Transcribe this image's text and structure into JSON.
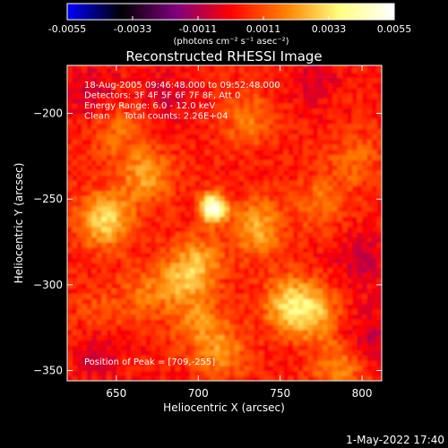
{
  "colorbar": {
    "tick_labels": [
      "-0.0055",
      "-0.0033",
      "-0.0011",
      "0.0011",
      "0.0033",
      "0.0055"
    ],
    "tick_values": [
      -0.0055,
      -0.0033,
      -0.0011,
      0.0011,
      0.0033,
      0.0055
    ],
    "range": [
      -0.0055,
      0.0055
    ],
    "unit_label": "(photons cm⁻² s⁻¹ asec⁻²)",
    "stops": [
      "#0000ff",
      "#000000",
      "#7f0080",
      "#ff0000",
      "#ff8000",
      "#ffff80",
      "#ffffff"
    ]
  },
  "chart_data": {
    "type": "heatmap",
    "title": "Reconstructed RHESSI Image",
    "xlabel": "Heliocentric X (arcsec)",
    "ylabel": "Heliocentric Y (arcsec)",
    "xlim": [
      620,
      812
    ],
    "ylim": [
      -356,
      -172
    ],
    "x_ticks": [
      650,
      700,
      750,
      800
    ],
    "y_ticks": [
      -200,
      -250,
      -300,
      -350
    ],
    "x_tick_labels": [
      "650",
      "700",
      "750",
      "800"
    ],
    "y_tick_labels": [
      "−200",
      "−250",
      "−300",
      "−350"
    ],
    "annotations": [
      "18-Aug-2005 09:46:48.000 to 09:52:48.000",
      "Detectors: 3F 4F 5F 6F 7F 8F, Att 0",
      "Energy Range: 6.0 - 12.0 keV",
      "Clean     Total counts: 2.26E+04"
    ],
    "peak_label": "Position of Peak = [709,-255]",
    "peak": {
      "x": 709,
      "y": -255,
      "value": 0.0055
    },
    "sources": [
      {
        "x": 709,
        "y": -255,
        "value": 0.0055
      },
      {
        "x": 643,
        "y": -262,
        "value": 0.003
      },
      {
        "x": 668,
        "y": -236,
        "value": 0.002
      },
      {
        "x": 736,
        "y": -266,
        "value": 0.0022
      },
      {
        "x": 755,
        "y": -311,
        "value": 0.0024
      },
      {
        "x": 770,
        "y": -316,
        "value": 0.0022
      },
      {
        "x": 700,
        "y": -286,
        "value": 0.0018
      },
      {
        "x": 690,
        "y": -298,
        "value": 0.0016
      },
      {
        "x": 700,
        "y": -322,
        "value": 0.0015
      },
      {
        "x": 715,
        "y": -340,
        "value": 0.0016
      },
      {
        "x": 785,
        "y": -348,
        "value": 0.0016
      },
      {
        "x": 650,
        "y": -210,
        "value": 0.0012
      },
      {
        "x": 730,
        "y": -203,
        "value": 0.0014
      },
      {
        "x": 775,
        "y": -252,
        "value": 0.0013
      },
      {
        "x": 795,
        "y": -226,
        "value": 0.0012
      },
      {
        "x": 668,
        "y": -304,
        "value": 0.0012
      },
      {
        "x": 640,
        "y": -318,
        "value": 0.001
      },
      {
        "x": 680,
        "y": -190,
        "value": -0.0008
      },
      {
        "x": 635,
        "y": -188,
        "value": -0.001
      },
      {
        "x": 800,
        "y": -285,
        "value": -0.0012
      },
      {
        "x": 640,
        "y": -336,
        "value": -0.001
      },
      {
        "x": 805,
        "y": -330,
        "value": -0.0011
      },
      {
        "x": 770,
        "y": -182,
        "value": -0.0007
      }
    ]
  },
  "footer": {
    "timestamp": "1-May-2022 17:40"
  }
}
